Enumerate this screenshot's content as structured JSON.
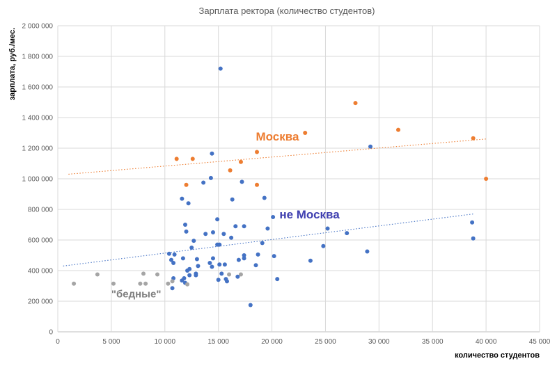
{
  "chart_data": {
    "type": "scatter",
    "title": "Зарплата ректора (количество студентов)",
    "xlabel": "количество студентов",
    "ylabel": "зарплата, руб./мес.",
    "xlim": [
      0,
      45000
    ],
    "ylim": [
      0,
      2000000
    ],
    "x_ticks": [
      0,
      5000,
      10000,
      15000,
      20000,
      25000,
      30000,
      35000,
      40000,
      45000
    ],
    "x_tick_labels": [
      "0",
      "5 000",
      "10 000",
      "15 000",
      "20 000",
      "25 000",
      "30 000",
      "35 000",
      "40 000",
      "45 000"
    ],
    "y_ticks": [
      0,
      200000,
      400000,
      600000,
      800000,
      1000000,
      1200000,
      1400000,
      1600000,
      1800000,
      2000000
    ],
    "y_tick_labels": [
      "0",
      "200 000",
      "400 000",
      "600 000",
      "800 000",
      "1 000 000",
      "1 200 000",
      "1 400 000",
      "1 600 000",
      "1 800 000",
      "2 000 000"
    ],
    "grid": true,
    "annotations": [
      {
        "text": "Москва",
        "x": 18500,
        "y": 1250000,
        "color": "#ED7D31",
        "size": 17
      },
      {
        "text": "не Москва",
        "x": 20700,
        "y": 740000,
        "color": "#4040B0",
        "size": 17
      },
      {
        "text": "\"бедные\"",
        "x": 5000,
        "y": 225000,
        "color": "#7F7F7F",
        "size": 15
      }
    ],
    "series": [
      {
        "color": "#ED7D31",
        "trendline": {
          "x": [
            1000,
            40000
          ],
          "y": [
            1030000,
            1260000
          ]
        },
        "points": [
          [
            11100,
            1130000
          ],
          [
            12000,
            960000
          ],
          [
            12600,
            1130000
          ],
          [
            16100,
            1055000
          ],
          [
            17100,
            1110000
          ],
          [
            18600,
            960000
          ],
          [
            18600,
            1175000
          ],
          [
            23100,
            1300000
          ],
          [
            27800,
            1495000
          ],
          [
            31800,
            1320000
          ],
          [
            38800,
            1265000
          ],
          [
            40000,
            1000000
          ]
        ]
      },
      {
        "color": "#4472C4",
        "trendline": {
          "x": [
            500,
            38800
          ],
          "y": [
            430000,
            770000
          ]
        },
        "points": [
          [
            15200,
            1720000
          ],
          [
            14400,
            1165000
          ],
          [
            29200,
            1210000
          ],
          [
            13600,
            975000
          ],
          [
            14300,
            1005000
          ],
          [
            17200,
            980000
          ],
          [
            11600,
            870000
          ],
          [
            12200,
            840000
          ],
          [
            16300,
            865000
          ],
          [
            19300,
            875000
          ],
          [
            14900,
            735000
          ],
          [
            20100,
            750000
          ],
          [
            11900,
            700000
          ],
          [
            16600,
            690000
          ],
          [
            17400,
            690000
          ],
          [
            12000,
            655000
          ],
          [
            13800,
            640000
          ],
          [
            14500,
            650000
          ],
          [
            15500,
            640000
          ],
          [
            19600,
            675000
          ],
          [
            25200,
            675000
          ],
          [
            27000,
            645000
          ],
          [
            38700,
            715000
          ],
          [
            38800,
            610000
          ],
          [
            12700,
            595000
          ],
          [
            16200,
            615000
          ],
          [
            14900,
            570000
          ],
          [
            15100,
            570000
          ],
          [
            19100,
            580000
          ],
          [
            12500,
            550000
          ],
          [
            10400,
            510000
          ],
          [
            10900,
            505000
          ],
          [
            24800,
            560000
          ],
          [
            28900,
            525000
          ],
          [
            10800,
            450000
          ],
          [
            10600,
            470000
          ],
          [
            11700,
            480000
          ],
          [
            13000,
            475000
          ],
          [
            14500,
            480000
          ],
          [
            16900,
            470000
          ],
          [
            17400,
            480000
          ],
          [
            17400,
            500000
          ],
          [
            18700,
            505000
          ],
          [
            20200,
            495000
          ],
          [
            23600,
            465000
          ],
          [
            12100,
            400000
          ],
          [
            12300,
            410000
          ],
          [
            13100,
            430000
          ],
          [
            14200,
            450000
          ],
          [
            14400,
            425000
          ],
          [
            15100,
            440000
          ],
          [
            15600,
            440000
          ],
          [
            18500,
            435000
          ],
          [
            12900,
            380000
          ],
          [
            12900,
            370000
          ],
          [
            15300,
            380000
          ],
          [
            12300,
            370000
          ],
          [
            10800,
            350000
          ],
          [
            11800,
            350000
          ],
          [
            11600,
            335000
          ],
          [
            11900,
            320000
          ],
          [
            15000,
            340000
          ],
          [
            15800,
            330000
          ],
          [
            15700,
            345000
          ],
          [
            16800,
            360000
          ],
          [
            20500,
            345000
          ],
          [
            10700,
            285000
          ],
          [
            18000,
            175000
          ]
        ]
      },
      {
        "color": "#A5A5A5",
        "points": [
          [
            1500,
            315000
          ],
          [
            3700,
            375000
          ],
          [
            5200,
            315000
          ],
          [
            7700,
            315000
          ],
          [
            8000,
            380000
          ],
          [
            8200,
            315000
          ],
          [
            9300,
            375000
          ],
          [
            10300,
            315000
          ],
          [
            10700,
            330000
          ],
          [
            12100,
            310000
          ],
          [
            16000,
            375000
          ],
          [
            17100,
            375000
          ]
        ]
      }
    ]
  }
}
